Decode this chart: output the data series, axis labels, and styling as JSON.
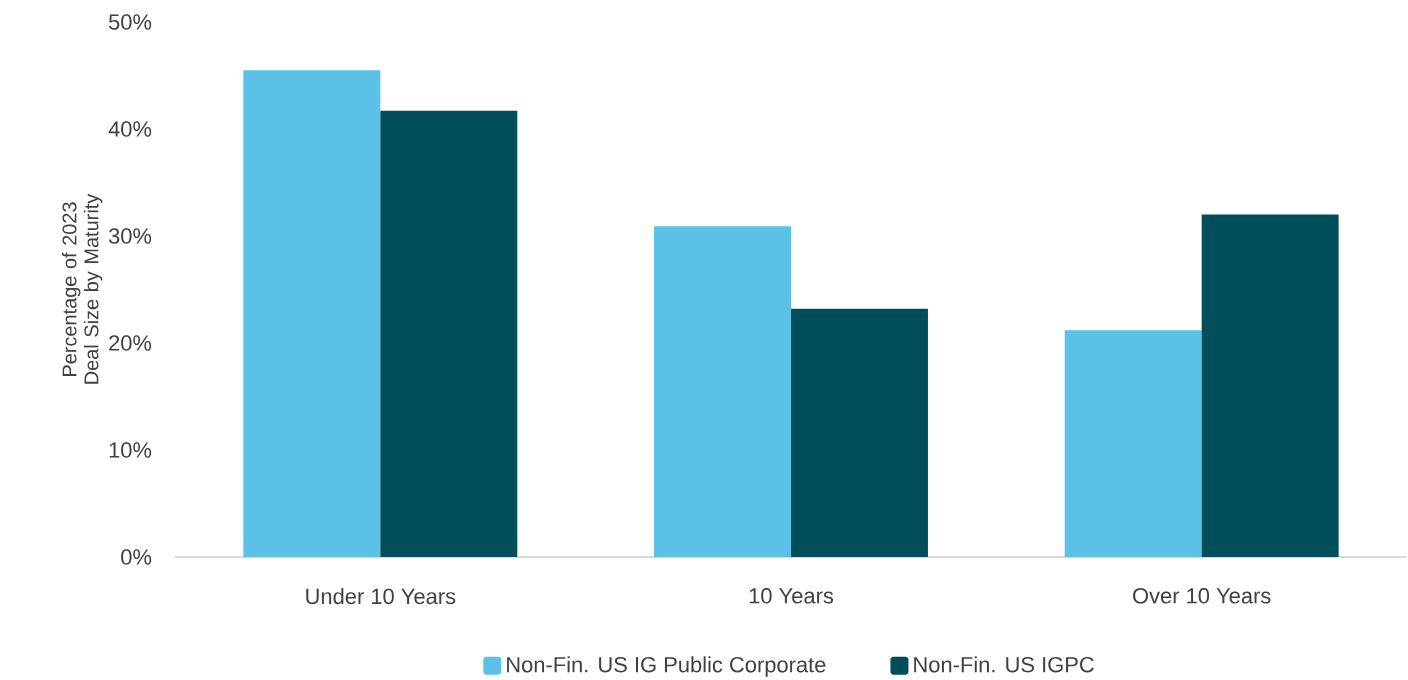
{
  "chart_data": {
    "type": "bar",
    "ylabel": "Percentage of 2023 Deal Size by Maturity",
    "categories": [
      "Under 10 Years",
      "10 Years",
      "Over 10 Years"
    ],
    "series": [
      {
        "name": "Non-Fin. US IG Public Corporate",
        "color": "#5bc1e6",
        "values": [
          45.5,
          30.9,
          21.2
        ]
      },
      {
        "name": "Non-Fin. US IGPC",
        "color": "#004e59",
        "values": [
          41.7,
          23.2,
          32.0
        ]
      }
    ],
    "ylim": [
      0,
      50
    ],
    "yticks": [
      {
        "value": 0,
        "label": "0%"
      },
      {
        "value": 10,
        "label": "10%"
      },
      {
        "value": 20,
        "label": "20%"
      },
      {
        "value": 30,
        "label": "30%"
      },
      {
        "value": 40,
        "label": "40%"
      },
      {
        "value": 50,
        "label": "50%"
      }
    ],
    "grid": false,
    "legend": "bottom"
  }
}
